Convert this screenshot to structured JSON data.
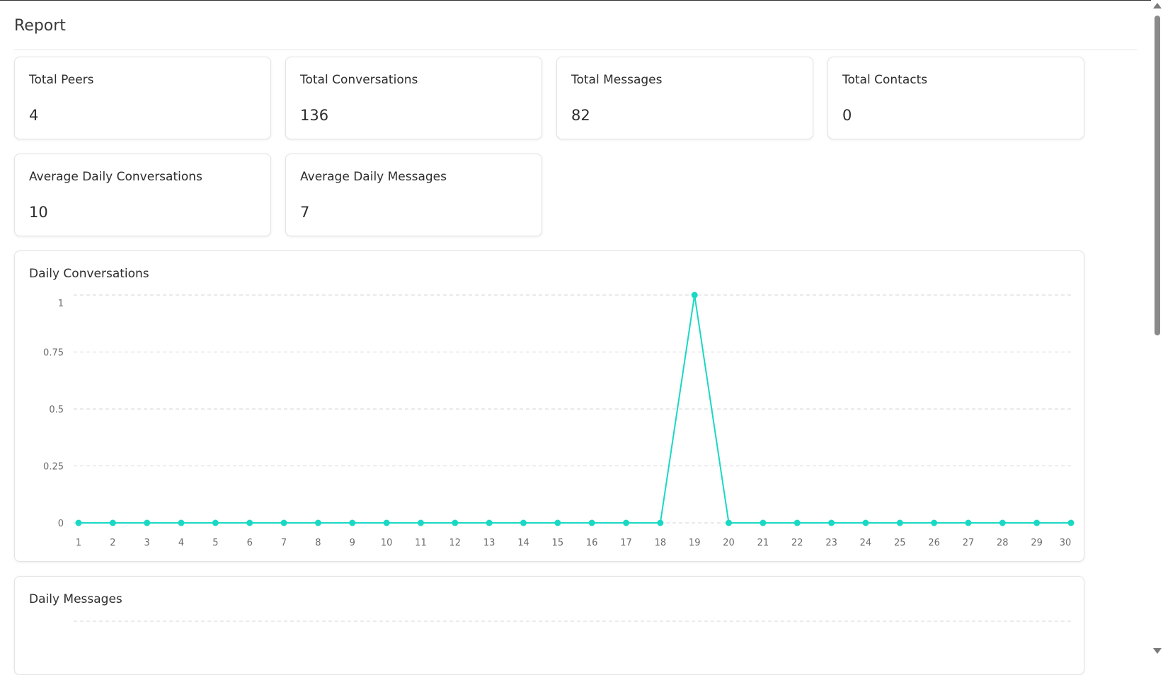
{
  "page": {
    "title": "Report"
  },
  "stats": [
    {
      "label": "Total Peers",
      "value": "4"
    },
    {
      "label": "Total Conversations",
      "value": "136"
    },
    {
      "label": "Total Messages",
      "value": "82"
    },
    {
      "label": "Total Contacts",
      "value": "0"
    },
    {
      "label": "Average Daily Conversations",
      "value": "10"
    },
    {
      "label": "Average Daily Messages",
      "value": "7"
    }
  ],
  "colors": {
    "series": "#19d8c4",
    "grid": "#d6d6d6",
    "tick": "#6b6b6b"
  },
  "chart_data": [
    {
      "type": "line",
      "title": "Daily Conversations",
      "x": [
        1,
        2,
        3,
        4,
        5,
        6,
        7,
        8,
        9,
        10,
        11,
        12,
        13,
        14,
        15,
        16,
        17,
        18,
        19,
        20,
        21,
        22,
        23,
        24,
        25,
        26,
        27,
        28,
        29,
        30
      ],
      "series": [
        {
          "values": [
            0,
            0,
            0,
            0,
            0,
            0,
            0,
            0,
            0,
            0,
            0,
            0,
            0,
            0,
            0,
            0,
            0,
            0,
            1,
            0,
            0,
            0,
            0,
            0,
            0,
            0,
            0,
            0,
            0,
            0
          ]
        }
      ],
      "yticks": [
        "0",
        "0.25",
        "0.5",
        "0.75",
        "1"
      ],
      "ylim": [
        0,
        1
      ],
      "grid": true,
      "xlabel": "",
      "ylabel": ""
    },
    {
      "type": "line",
      "title": "Daily Messages"
    }
  ]
}
